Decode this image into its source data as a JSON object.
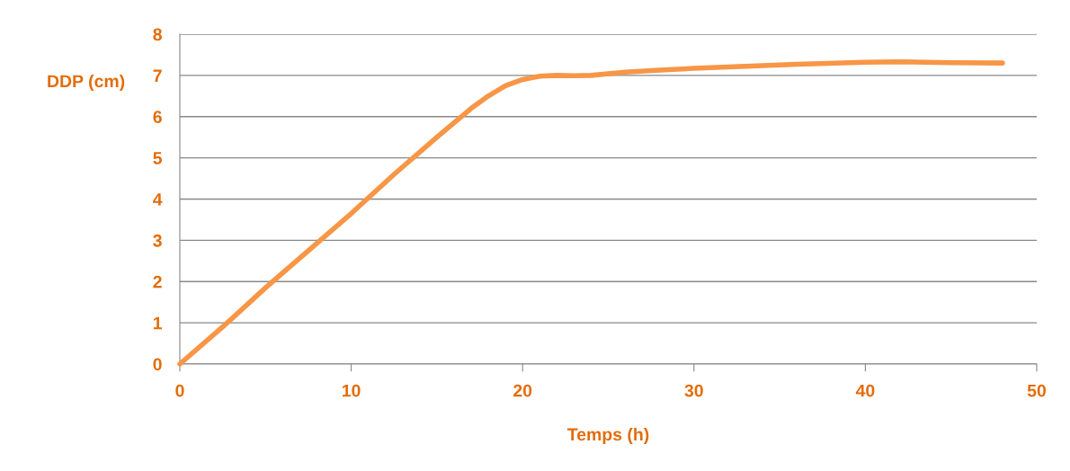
{
  "chart_data": {
    "type": "line",
    "xlabel": "Temps (h)",
    "ylabel": "DDP (cm)",
    "x": [
      0,
      2.5,
      5,
      7.5,
      10,
      12.5,
      15,
      17,
      18,
      19,
      20,
      21,
      22,
      23,
      24,
      25,
      26,
      28,
      30,
      33,
      36,
      40,
      42,
      45,
      48
    ],
    "series": [
      {
        "color": "#f79646",
        "values": [
          0,
          0.9,
          1.85,
          2.75,
          3.65,
          4.6,
          5.5,
          6.2,
          6.5,
          6.75,
          6.9,
          6.98,
          7.0,
          6.99,
          7.0,
          7.04,
          7.08,
          7.13,
          7.17,
          7.22,
          7.27,
          7.32,
          7.33,
          7.31,
          7.3
        ]
      }
    ],
    "xlim": [
      0,
      50
    ],
    "xticks": [
      0,
      10,
      20,
      30,
      40,
      50
    ],
    "ylim": [
      0,
      8
    ],
    "yticks": [
      0,
      1,
      2,
      3,
      4,
      5,
      6,
      7,
      8
    ],
    "grid": "y",
    "marker": "none",
    "line_style": "solid",
    "legend": false
  }
}
